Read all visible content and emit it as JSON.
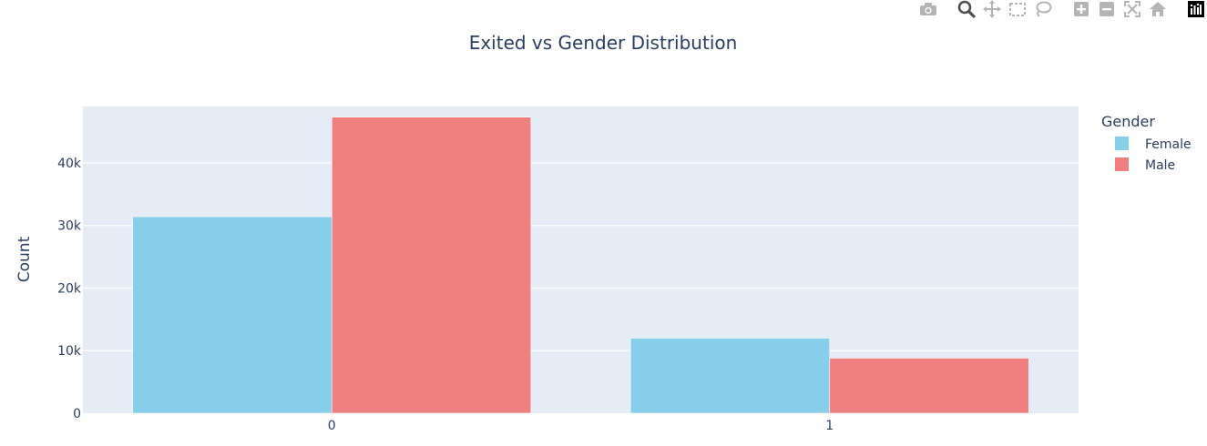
{
  "chart_data": {
    "type": "bar",
    "title": "Exited vs Gender Distribution",
    "xlabel": "",
    "ylabel": "Count",
    "categories": [
      "0",
      "1"
    ],
    "series": [
      {
        "name": "Female",
        "values": [
          31400,
          12000
        ],
        "color": "#87ceeb"
      },
      {
        "name": "Male",
        "values": [
          47300,
          8800
        ],
        "color": "#f08080"
      }
    ],
    "ylim": [
      0,
      49000
    ],
    "y_ticks": [
      0,
      10000,
      20000,
      30000,
      40000
    ],
    "y_tick_labels": [
      "0",
      "10k",
      "20k",
      "30k",
      "40k"
    ],
    "grid": true,
    "legend_title": "Gender",
    "legend_position": "top-right",
    "plot_bg": "#e5ecf6"
  },
  "modebar": {
    "icons": [
      "camera-icon",
      "zoom-icon",
      "pan-icon",
      "box-select-icon",
      "lasso-icon",
      "zoom-in-icon",
      "zoom-out-icon",
      "autoscale-icon",
      "home-icon",
      "plotly-logo-icon"
    ]
  }
}
